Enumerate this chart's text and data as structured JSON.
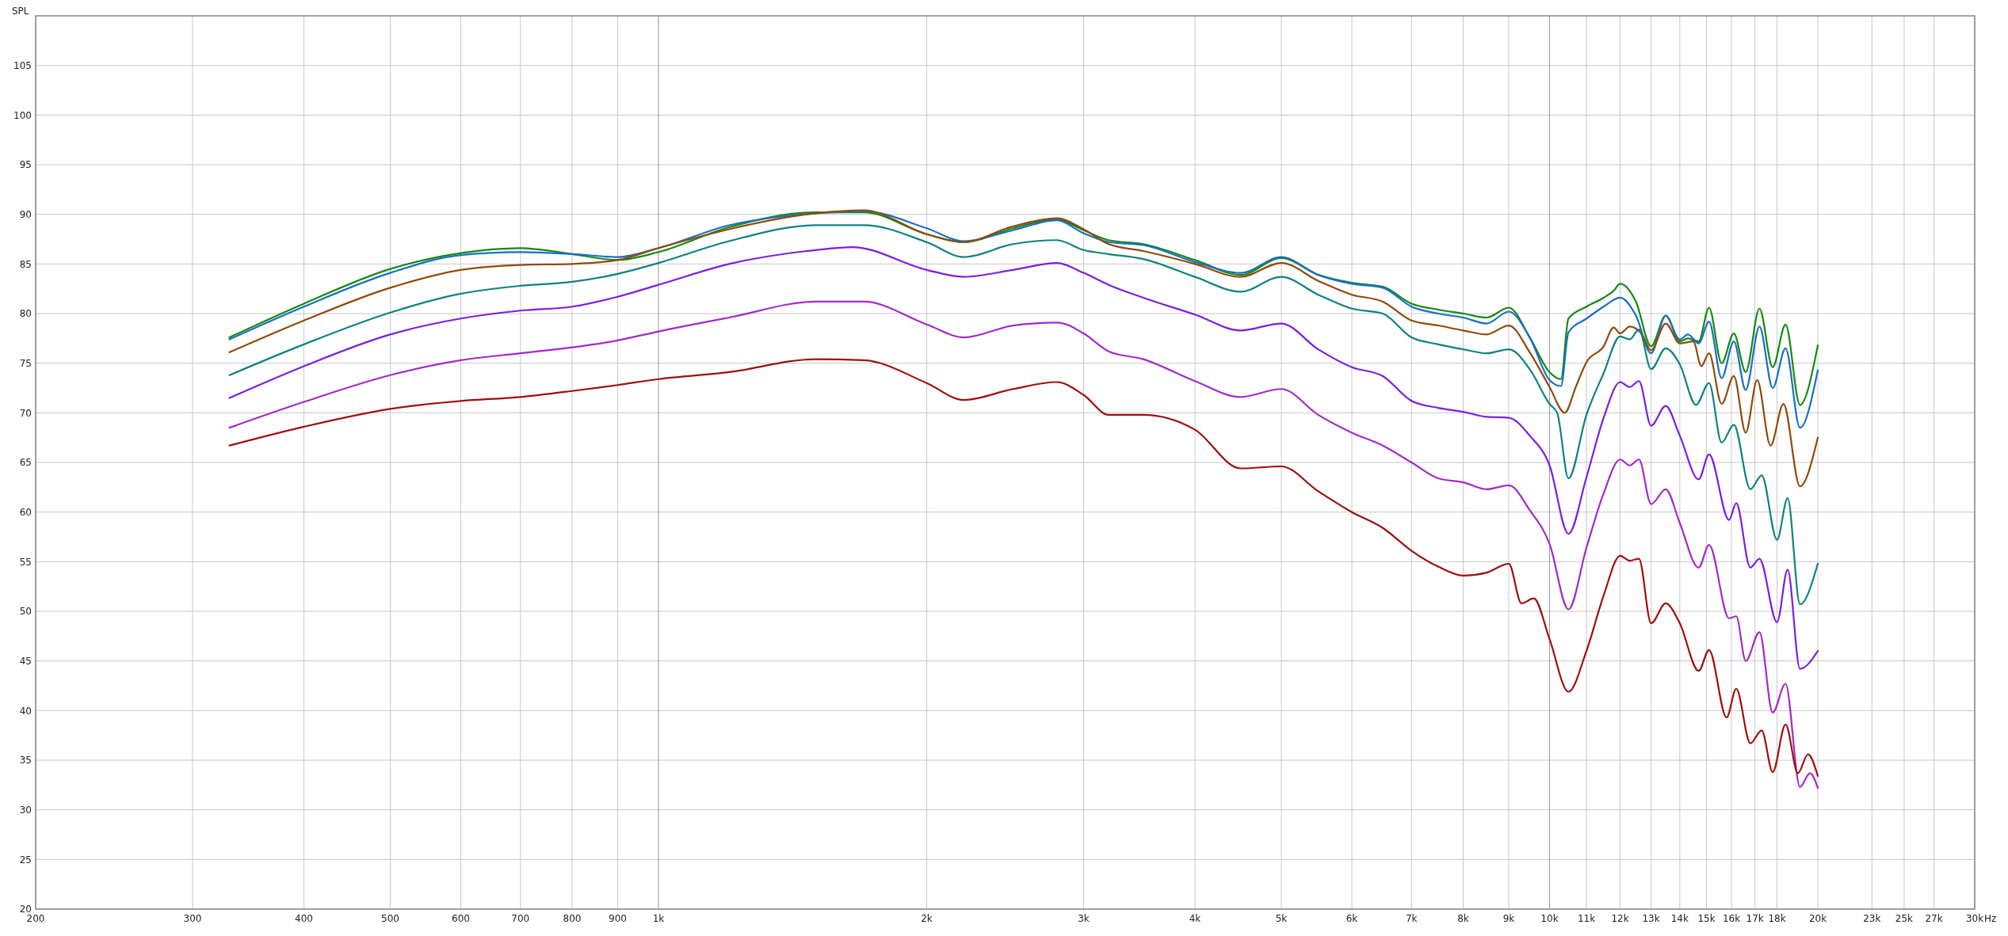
{
  "chart_data": {
    "type": "line",
    "ylabel": "SPL",
    "log": "x",
    "grid": true,
    "marker": "none",
    "line_style": "solid",
    "xlim": [
      200,
      30000
    ],
    "ylim": [
      20,
      110
    ],
    "xticks": [
      200,
      300,
      400,
      500,
      600,
      700,
      800,
      900,
      {
        "value": 1000,
        "label": "1k"
      },
      {
        "value": 2000,
        "label": "2k"
      },
      {
        "value": 3000,
        "label": "3k"
      },
      {
        "value": 4000,
        "label": "4k"
      },
      {
        "value": 5000,
        "label": "5k"
      },
      {
        "value": 6000,
        "label": "6k"
      },
      {
        "value": 7000,
        "label": "7k"
      },
      {
        "value": 8000,
        "label": "8k"
      },
      {
        "value": 9000,
        "label": "9k"
      },
      {
        "value": 10000,
        "label": "10k"
      },
      {
        "value": 11000,
        "label": "11k"
      },
      {
        "value": 12000,
        "label": "12k"
      },
      {
        "value": 13000,
        "label": "13k"
      },
      {
        "value": 14000,
        "label": "14k"
      },
      {
        "value": 15000,
        "label": "15k"
      },
      {
        "value": 16000,
        "label": "16k"
      },
      {
        "value": 17000,
        "label": "17k"
      },
      {
        "value": 18000,
        "label": "18k"
      },
      {
        "value": 20000,
        "label": "20k"
      },
      {
        "value": 23000,
        "label": "23k"
      },
      {
        "value": 25000,
        "label": "25k"
      },
      {
        "value": 27000,
        "label": "27k"
      },
      {
        "value": 30000,
        "label": "30k"
      }
    ],
    "xlabel": "Hz",
    "yticks": [
      20,
      25,
      30,
      35,
      40,
      45,
      50,
      55,
      60,
      65,
      70,
      75,
      80,
      85,
      90,
      95,
      100,
      105
    ],
    "series": [
      {
        "color": "#138a13",
        "x": [
          330,
          400,
          500,
          600,
          700,
          800,
          900,
          1000,
          1200,
          1500,
          1700,
          2000,
          2200,
          2500,
          2800,
          3000,
          3200,
          3500,
          4000,
          4500,
          5000,
          5500,
          6000,
          6500,
          7000,
          7500,
          8000,
          8500,
          9000,
          9500,
          10000,
          10300,
          10500,
          11000,
          11500,
          11800,
          12000,
          12500,
          13000,
          13500,
          14000,
          14300,
          14700,
          15100,
          15600,
          16100,
          16600,
          17200,
          17800,
          18400,
          19100,
          20000
        ],
        "values": [
          77.6,
          81.0,
          84.5,
          86.1,
          86.6,
          86.0,
          85.4,
          86.2,
          88.7,
          90.2,
          90.2,
          88.0,
          87.2,
          88.6,
          89.5,
          88.4,
          87.4,
          87.0,
          85.4,
          83.9,
          85.6,
          83.9,
          83.1,
          82.7,
          81.0,
          80.4,
          80.0,
          79.6,
          80.6,
          77.6,
          74.1,
          73.4,
          79.5,
          80.7,
          81.6,
          82.3,
          83.0,
          81.2,
          76.7,
          79.8,
          77.2,
          77.5,
          77.2,
          80.6,
          75.0,
          78.0,
          74.1,
          80.5,
          74.6,
          78.9,
          70.8,
          76.8
        ]
      },
      {
        "color": "#1a6fc4",
        "x": [
          330,
          400,
          500,
          600,
          700,
          800,
          900,
          1000,
          1200,
          1500,
          1700,
          2000,
          2200,
          2500,
          2800,
          3000,
          3200,
          3500,
          4000,
          4500,
          5000,
          5500,
          6000,
          6500,
          7000,
          7500,
          8000,
          8500,
          9000,
          9500,
          10000,
          10300,
          10500,
          11000,
          11500,
          12000,
          12500,
          13000,
          13500,
          14000,
          14300,
          14700,
          15100,
          15600,
          16100,
          16600,
          17200,
          17800,
          18400,
          19100,
          20000
        ],
        "values": [
          77.4,
          80.7,
          84.1,
          85.9,
          86.2,
          86.0,
          85.7,
          86.6,
          88.9,
          90.1,
          90.3,
          88.6,
          87.3,
          88.4,
          89.4,
          88.1,
          87.2,
          86.9,
          85.2,
          84.1,
          85.7,
          83.9,
          83.0,
          82.6,
          80.7,
          80.0,
          79.6,
          79.0,
          80.2,
          77.6,
          73.3,
          72.7,
          78.1,
          79.5,
          80.7,
          81.6,
          79.8,
          76.0,
          79.8,
          77.4,
          77.9,
          77.0,
          79.2,
          73.5,
          77.2,
          72.3,
          78.7,
          72.5,
          76.5,
          68.5,
          74.3
        ]
      },
      {
        "color": "#8f4b0c",
        "x": [
          330,
          400,
          500,
          600,
          700,
          800,
          900,
          1000,
          1200,
          1500,
          1700,
          2000,
          2200,
          2500,
          2800,
          3000,
          3200,
          3500,
          4000,
          4500,
          5000,
          5500,
          6000,
          6500,
          7000,
          7500,
          8000,
          8500,
          9000,
          9500,
          10000,
          10400,
          10700,
          11000,
          11500,
          11800,
          12000,
          12300,
          12700,
          13000,
          13500,
          14000,
          14500,
          14800,
          15100,
          15600,
          16100,
          16600,
          17100,
          17700,
          18300,
          19100,
          20000
        ],
        "values": [
          76.1,
          79.3,
          82.6,
          84.4,
          84.9,
          85.0,
          85.4,
          86.6,
          88.5,
          90.1,
          90.4,
          88.0,
          87.2,
          88.8,
          89.6,
          88.5,
          87.0,
          86.3,
          85.0,
          83.7,
          85.1,
          83.3,
          81.9,
          81.2,
          79.3,
          78.8,
          78.3,
          77.9,
          78.8,
          76.1,
          72.6,
          70.0,
          72.6,
          75.1,
          76.7,
          78.6,
          78.0,
          78.7,
          77.9,
          76.3,
          79.0,
          77.0,
          77.2,
          74.7,
          76.0,
          70.9,
          73.7,
          68.0,
          73.3,
          66.7,
          70.9,
          62.6,
          67.5
        ]
      },
      {
        "color": "#0f8282",
        "x": [
          330,
          400,
          500,
          600,
          700,
          800,
          900,
          1000,
          1200,
          1500,
          1700,
          2000,
          2200,
          2500,
          2800,
          3000,
          3200,
          3500,
          4000,
          4500,
          5000,
          5500,
          6000,
          6500,
          7000,
          7500,
          8000,
          8500,
          9000,
          9500,
          10000,
          10200,
          10500,
          11000,
          11500,
          12000,
          12300,
          12600,
          13000,
          13500,
          14000,
          14600,
          15100,
          15600,
          16100,
          16800,
          17300,
          18000,
          18500,
          19100,
          20000
        ],
        "values": [
          73.8,
          76.9,
          80.1,
          82.0,
          82.8,
          83.2,
          84.0,
          85.1,
          87.3,
          88.9,
          88.9,
          87.2,
          85.7,
          87.0,
          87.4,
          86.4,
          86.0,
          85.5,
          83.7,
          82.2,
          83.7,
          81.9,
          80.5,
          80.0,
          77.6,
          76.9,
          76.4,
          76.0,
          76.4,
          74.4,
          70.9,
          70.0,
          63.4,
          69.8,
          74.0,
          77.7,
          77.4,
          78.4,
          74.4,
          76.5,
          74.9,
          70.8,
          73.0,
          67.0,
          68.8,
          62.3,
          63.7,
          57.2,
          61.4,
          50.7,
          54.8
        ]
      },
      {
        "color": "#7b1fe0",
        "x": [
          330,
          400,
          500,
          600,
          700,
          800,
          900,
          1000,
          1200,
          1500,
          1650,
          2000,
          2200,
          2500,
          2800,
          3000,
          3200,
          3500,
          4000,
          4500,
          5000,
          5500,
          6000,
          6500,
          7000,
          7500,
          8000,
          8500,
          9000,
          9500,
          10000,
          10500,
          11000,
          11500,
          12000,
          12300,
          12600,
          13000,
          13500,
          14000,
          14700,
          15100,
          15900,
          16200,
          16800,
          17200,
          18000,
          18500,
          19100,
          20000
        ],
        "values": [
          71.5,
          74.7,
          77.9,
          79.5,
          80.3,
          80.7,
          81.7,
          82.9,
          85.0,
          86.4,
          86.7,
          84.4,
          83.7,
          84.4,
          85.1,
          84.1,
          82.9,
          81.6,
          79.9,
          78.3,
          79.0,
          76.4,
          74.6,
          73.7,
          71.2,
          70.5,
          70.1,
          69.6,
          69.5,
          67.7,
          64.7,
          57.8,
          63.5,
          69.5,
          73.1,
          72.6,
          73.2,
          68.7,
          70.7,
          67.7,
          63.3,
          65.8,
          59.2,
          60.9,
          54.4,
          55.3,
          48.9,
          54.2,
          44.2,
          46.0
        ]
      },
      {
        "color": "#a52ac9",
        "x": [
          330,
          400,
          500,
          600,
          700,
          800,
          900,
          1000,
          1200,
          1500,
          1700,
          2000,
          2200,
          2500,
          2800,
          3000,
          3200,
          3500,
          4000,
          4500,
          5000,
          5500,
          6000,
          6500,
          7000,
          7500,
          8000,
          8500,
          9000,
          9500,
          10000,
          10500,
          11000,
          11500,
          12000,
          12300,
          12600,
          13000,
          13500,
          14000,
          14700,
          15100,
          15900,
          16200,
          16600,
          17200,
          17800,
          18400,
          19100,
          19600,
          20000
        ],
        "values": [
          68.5,
          71.1,
          73.8,
          75.3,
          76.0,
          76.6,
          77.3,
          78.2,
          79.6,
          81.2,
          81.2,
          78.9,
          77.6,
          78.8,
          79.1,
          78.0,
          76.2,
          75.4,
          73.2,
          71.6,
          72.4,
          69.8,
          68.0,
          66.7,
          65.0,
          63.4,
          63.0,
          62.3,
          62.7,
          60.2,
          56.8,
          50.2,
          56.4,
          61.9,
          65.3,
          64.7,
          65.3,
          60.8,
          62.3,
          58.9,
          54.4,
          56.7,
          49.3,
          49.5,
          45.0,
          47.9,
          39.8,
          42.7,
          32.3,
          33.7,
          32.2
        ]
      },
      {
        "color": "#a00f0f",
        "x": [
          330,
          400,
          500,
          600,
          700,
          800,
          900,
          1000,
          1200,
          1500,
          1700,
          2000,
          2200,
          2500,
          2800,
          3000,
          3200,
          3500,
          4000,
          4500,
          5000,
          5500,
          6000,
          6500,
          7000,
          7500,
          8000,
          8500,
          9000,
          9300,
          9600,
          10000,
          10500,
          11000,
          11500,
          12000,
          12300,
          12600,
          13000,
          13500,
          14000,
          14700,
          15100,
          15800,
          16200,
          16800,
          17300,
          17800,
          18400,
          19000,
          19500,
          20000
        ],
        "values": [
          66.7,
          68.6,
          70.4,
          71.2,
          71.6,
          72.2,
          72.8,
          73.4,
          74.1,
          75.4,
          75.3,
          73.0,
          71.3,
          72.4,
          73.1,
          71.8,
          69.8,
          69.8,
          68.3,
          64.4,
          64.6,
          62.1,
          60.0,
          58.4,
          56.1,
          54.5,
          53.6,
          53.9,
          54.8,
          50.8,
          51.3,
          47.2,
          41.9,
          46.0,
          51.6,
          55.6,
          55.1,
          55.3,
          48.8,
          50.8,
          48.8,
          44.0,
          46.1,
          39.3,
          42.2,
          36.7,
          38.0,
          33.8,
          38.6,
          33.7,
          35.6,
          33.4
        ]
      }
    ]
  }
}
